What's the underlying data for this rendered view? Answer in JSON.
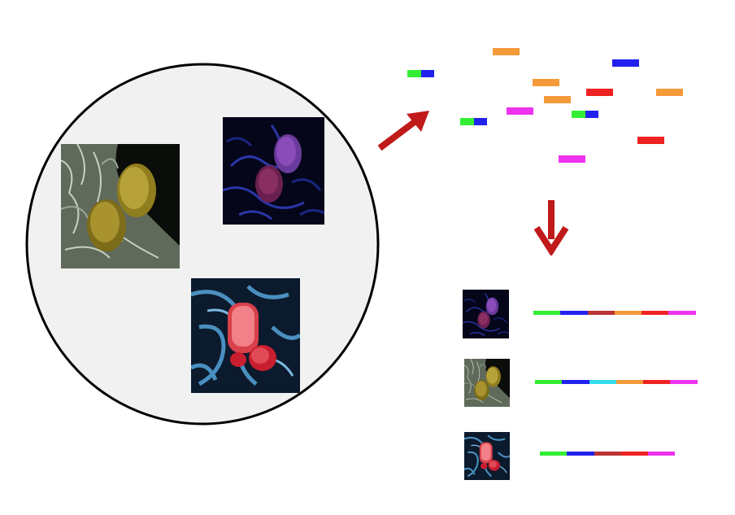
{
  "colors": {
    "green": "#33ee33",
    "blue": "#2222ee",
    "orange": "#f59a3a",
    "red": "#ee2222",
    "magenta": "#ee33ee",
    "cyan": "#33ddee",
    "darkred": "#bb3333",
    "arrow": "#c01a1a",
    "circle_fill": "#f1f1f1",
    "circle_stroke": "#000000"
  },
  "sample": {
    "images": [
      {
        "name": "micrograph-yellow-bacteria",
        "palette": "yellow"
      },
      {
        "name": "micrograph-purple-bacteria",
        "palette": "purple"
      },
      {
        "name": "micrograph-red-bacteria",
        "palette": "red"
      }
    ]
  },
  "fragments": [
    {
      "segments": [
        "green",
        "blue"
      ]
    },
    {
      "segments": [
        "orange"
      ]
    },
    {
      "segments": [
        "blue"
      ]
    },
    {
      "segments": [
        "orange"
      ]
    },
    {
      "segments": [
        "red"
      ]
    },
    {
      "segments": [
        "orange"
      ]
    },
    {
      "segments": [
        "orange"
      ]
    },
    {
      "segments": [
        "magenta"
      ]
    },
    {
      "segments": [
        "green",
        "blue"
      ]
    },
    {
      "segments": [
        "green",
        "blue"
      ]
    },
    {
      "segments": [
        "red"
      ]
    },
    {
      "segments": [
        "magenta"
      ]
    }
  ],
  "assemblies": [
    {
      "image": "purple",
      "segments": [
        "green",
        "blue",
        "darkred",
        "orange",
        "red",
        "magenta"
      ]
    },
    {
      "image": "yellow",
      "segments": [
        "green",
        "blue",
        "cyan",
        "orange",
        "red",
        "magenta"
      ]
    },
    {
      "image": "red",
      "segments": [
        "green",
        "blue",
        "darkred",
        "red",
        "magenta"
      ]
    }
  ]
}
